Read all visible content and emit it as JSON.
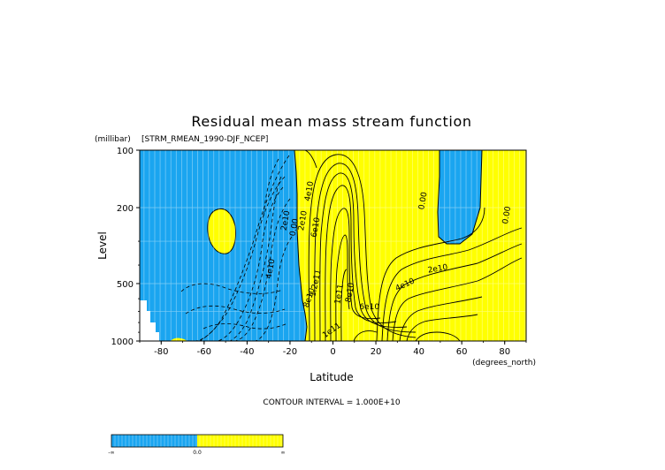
{
  "chart_data": {
    "type": "contour",
    "title": "Residual mean mass stream function",
    "subtitle": "[STRM_RMEAN_1990-DJF_NCEP]",
    "xlabel": "Latitude",
    "xunits": "(degrees_north)",
    "ylabel": "Level",
    "yunits": "(millibar)",
    "xlim": [
      -90,
      90
    ],
    "ylim": [
      1000,
      100
    ],
    "y_scale": "log",
    "x_ticks": [
      -80,
      -60,
      -40,
      -20,
      0,
      20,
      40,
      60,
      80
    ],
    "x_tick_labels": [
      "-80",
      "-60",
      "-40",
      "-20",
      "0",
      "20",
      "40",
      "60",
      "80"
    ],
    "y_ticks": [
      100,
      200,
      500,
      1000
    ],
    "y_tick_labels": [
      "100",
      "200",
      "500",
      "1000"
    ],
    "footer": "CONTOUR INTERVAL = 1.000E+10",
    "colors": {
      "negative": "#1aa5f0",
      "positive": "#ffff00",
      "missing": "#ffffff"
    },
    "colorbar": {
      "labels": [
        "-∞",
        "0.0",
        "∞"
      ]
    },
    "contour_labels": [
      {
        "text": "4e10",
        "lat": -28,
        "p": 420,
        "rot": -80
      },
      {
        "text": "2e10",
        "lat": -21,
        "p": 235,
        "rot": -80
      },
      {
        "text": "0.00",
        "lat": -17,
        "p": 255,
        "rot": -80
      },
      {
        "text": "2e10",
        "lat": -13,
        "p": 235,
        "rot": -80
      },
      {
        "text": "4e10",
        "lat": -10,
        "p": 165,
        "rot": -80
      },
      {
        "text": "6e10",
        "lat": -7,
        "p": 255,
        "rot": -80
      },
      {
        "text": "8e10",
        "lat": -10,
        "p": 600,
        "rot": -70
      },
      {
        "text": "1.2e11",
        "lat": -7,
        "p": 500,
        "rot": -78
      },
      {
        "text": "1e11",
        "lat": 4,
        "p": 570,
        "rot": -80
      },
      {
        "text": "8e10",
        "lat": 9,
        "p": 560,
        "rot": -80
      },
      {
        "text": "6e10",
        "lat": 17,
        "p": 680,
        "rot": 0
      },
      {
        "text": "4e10",
        "lat": 34,
        "p": 520,
        "rot": -25
      },
      {
        "text": "2e10",
        "lat": 49,
        "p": 430,
        "rot": -10
      },
      {
        "text": "0.00",
        "lat": 43,
        "p": 185,
        "rot": -80
      },
      {
        "text": "0.00",
        "lat": 82,
        "p": 220,
        "rot": -80
      },
      {
        "text": "1e11",
        "lat": 0,
        "p": 900,
        "rot": -35
      }
    ]
  }
}
